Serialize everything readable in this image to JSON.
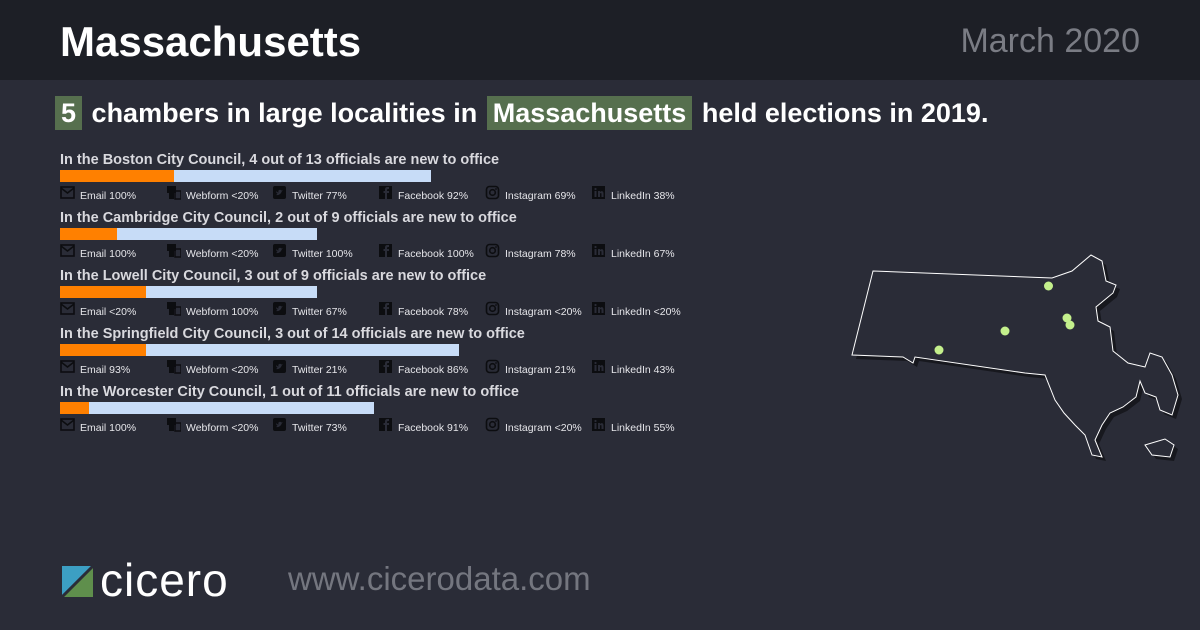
{
  "header": {
    "state": "Massachusetts",
    "date": "March 2020"
  },
  "headline": {
    "count": "5",
    "part1": "chambers in large localities in",
    "state": "Massachusetts",
    "part2": "held elections in 2019."
  },
  "colors": {
    "new_officials": "#ff8000",
    "total_officials": "#c7dcf7",
    "highlight": "#566f4e",
    "city_dot": "#c4f08c"
  },
  "councils": [
    {
      "title": "In the Boston City Council, 4 out of 13 officials are new to office",
      "new": 4,
      "total": 13,
      "contacts": [
        "Email 100%",
        "Webform <20%",
        "Twitter 77%",
        "Facebook 92%",
        "Instagram 69%",
        "LinkedIn 38%"
      ]
    },
    {
      "title": "In the Cambridge City Council, 2 out of 9 officials are new to office",
      "new": 2,
      "total": 9,
      "contacts": [
        "Email 100%",
        "Webform <20%",
        "Twitter 100%",
        "Facebook 100%",
        "Instagram 78%",
        "LinkedIn 67%"
      ]
    },
    {
      "title": "In the Lowell City Council, 3 out of 9 officials are new to office",
      "new": 3,
      "total": 9,
      "contacts": [
        "Email <20%",
        "Webform 100%",
        "Twitter 67%",
        "Facebook 78%",
        "Instagram <20%",
        "LinkedIn <20%"
      ]
    },
    {
      "title": "In the Springfield City Council, 3 out of 14 officials are new to office",
      "new": 3,
      "total": 14,
      "contacts": [
        "Email 93%",
        "Webform <20%",
        "Twitter 21%",
        "Facebook 86%",
        "Instagram 21%",
        "LinkedIn 43%"
      ]
    },
    {
      "title": "In the Worcester City Council, 1 out of 11 officials are new to office",
      "new": 1,
      "total": 11,
      "contacts": [
        "Email 100%",
        "Webform <20%",
        "Twitter 73%",
        "Facebook 91%",
        "Instagram <20%",
        "LinkedIn 55%"
      ]
    }
  ],
  "contact_icons": [
    "email-icon",
    "webform-icon",
    "twitter-icon",
    "facebook-icon",
    "instagram-icon",
    "linkedin-icon"
  ],
  "footer": {
    "brand": "cicero",
    "url": "www.cicerodata.com"
  }
}
